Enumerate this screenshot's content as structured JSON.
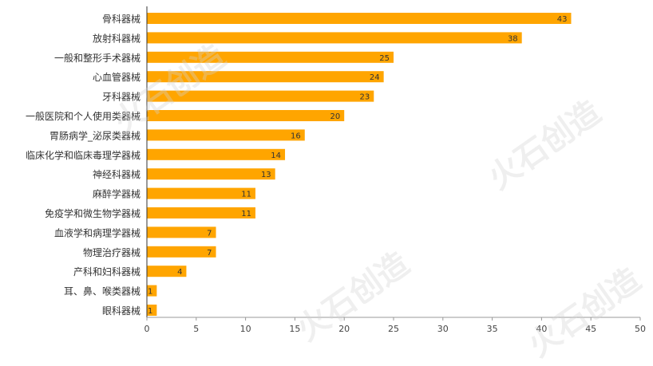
{
  "chart_data": {
    "type": "bar",
    "orientation": "horizontal",
    "categories": [
      "骨科器械",
      "放射科器械",
      "一般和整形手术器械",
      "心血管器械",
      "牙科器械",
      "一般医院和个人使用类器械",
      "胃肠病学_泌尿类器械",
      "临床化学和临床毒理学器械",
      "神经科器械",
      "麻醉学器械",
      "免疫学和微生物学器械",
      "血液学和病理学器械",
      "物理治疗器械",
      "产科和妇科器械",
      "耳、鼻、喉类器械",
      "眼科器械"
    ],
    "values": [
      43,
      38,
      25,
      24,
      23,
      20,
      16,
      14,
      13,
      11,
      11,
      7,
      7,
      4,
      1,
      1
    ],
    "xlim": [
      0,
      50
    ],
    "xticks": [
      0,
      5,
      10,
      15,
      20,
      25,
      30,
      35,
      40,
      45,
      50
    ],
    "grid": false,
    "bar_color": "#FFA500",
    "label_color": "#333333",
    "title": "",
    "xlabel": "",
    "ylabel": ""
  },
  "watermark": {
    "text": "火石创造"
  }
}
